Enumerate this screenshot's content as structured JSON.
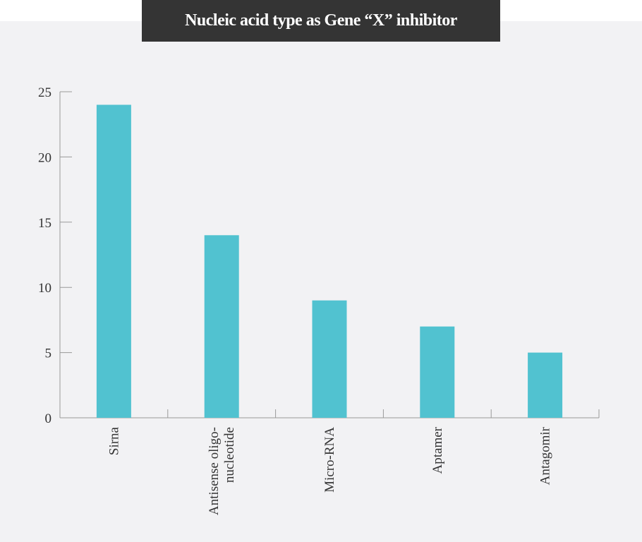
{
  "chart_data": {
    "type": "bar",
    "title": "Nucleic acid type as Gene “X” inhibitor",
    "categories": [
      [
        "Sirna"
      ],
      [
        "Antisense oligo-",
        "nucleotide"
      ],
      [
        "Micro-RNA"
      ],
      [
        "Aptamer"
      ],
      [
        "Antagomir"
      ]
    ],
    "values": [
      24,
      14,
      9,
      7,
      5
    ],
    "ylim": [
      0,
      25
    ],
    "yticks": [
      0,
      5,
      10,
      15,
      20,
      25
    ],
    "xlabel": "",
    "ylabel": "",
    "grid": false,
    "bar_color": "#51c2d0",
    "axis_color": "#999999"
  }
}
